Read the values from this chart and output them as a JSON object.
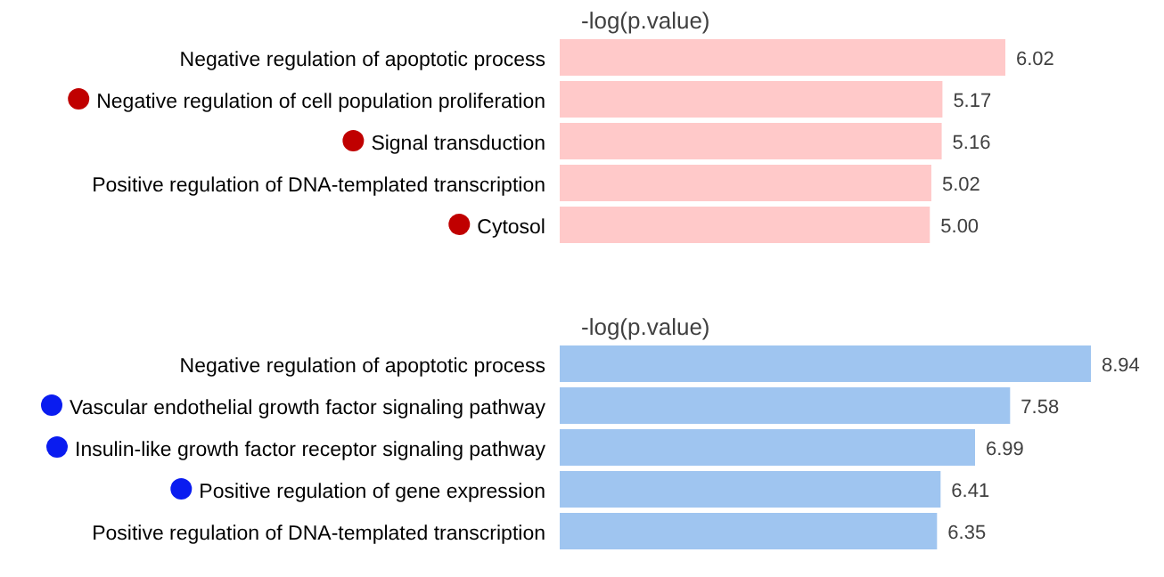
{
  "chart_data": [
    {
      "type": "bar",
      "orientation": "horizontal",
      "relative": false,
      "xlabel": "-log(p.value)",
      "data_labels": true,
      "categories": [
        "Negative regulation of apoptotic process",
        "Negative regulation of cell population proliferation",
        "Signal transduction",
        "Positive regulation of DNA-templated transcription",
        "Cytosol"
      ],
      "series": [
        {
          "color": "#ffc9c9",
          "values": [
            6.02,
            5.17,
            5.16,
            5.02,
            5.0
          ],
          "value_labels": [
            "6.02",
            "5.17",
            "5.16",
            "5.02",
            "5.00"
          ]
        }
      ]
    },
    {
      "type": "bar",
      "orientation": "horizontal",
      "relative": false,
      "xlabel": "-log(p.value)",
      "data_labels": true,
      "categories": [
        "Negative regulation of apoptotic process",
        "Vascular endothelial growth factor signaling pathway",
        "Insulin-like growth factor receptor signaling pathway",
        "Positive regulation of gene expression",
        "Positive regulation of DNA-templated transcription"
      ],
      "series": [
        {
          "color": "#9fc5f0",
          "values": [
            8.94,
            7.58,
            6.99,
            6.41,
            6.35
          ],
          "value_labels": [
            "8.94",
            "7.58",
            "6.99",
            "6.41",
            "6.35"
          ]
        }
      ]
    }
  ]
}
